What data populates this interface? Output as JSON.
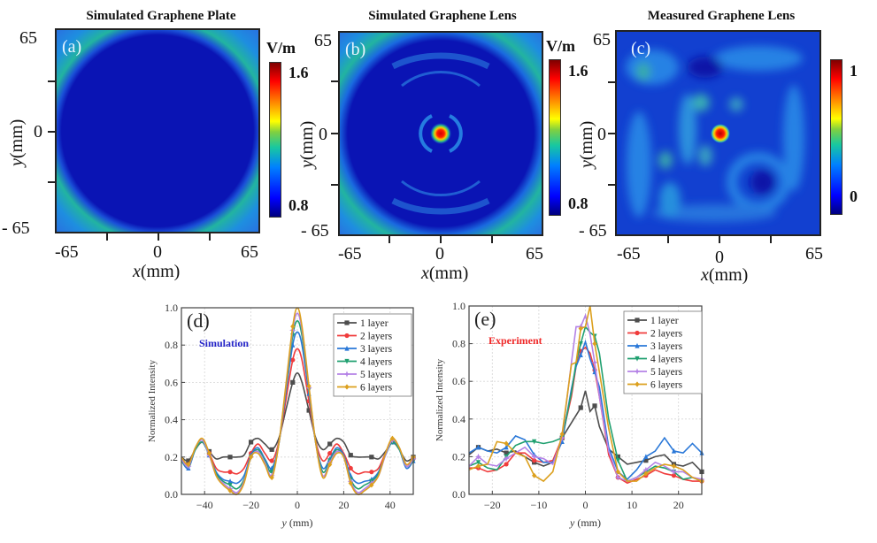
{
  "chart_data": [
    {
      "id": "a",
      "type": "heatmap",
      "title": "Simulated Graphene Plate",
      "title_color": "#c85fb4",
      "panel_label": "(a)",
      "xlabel_var": "x",
      "xlabel_unit": "(mm)",
      "ylabel_var": "y",
      "ylabel_unit": "(mm)",
      "x_ticks": [
        "-65",
        "0",
        "65"
      ],
      "y_ticks": [
        "65",
        "0",
        "- 65"
      ],
      "xlim": [
        -65,
        65
      ],
      "ylim": [
        -65,
        65
      ],
      "colorbar": {
        "unit": "V/m",
        "max_label": "1.6",
        "min_label": "0.8",
        "range": [
          0.8,
          1.6
        ]
      },
      "description": "Uniform low field (~0.8 V/m) with elevated ~1.1 V/m arcs at the four corners"
    },
    {
      "id": "b",
      "type": "heatmap",
      "title": "Simulated Graphene Lens",
      "title_color": "#f08a3c",
      "panel_label": "(b)",
      "xlabel_var": "x",
      "xlabel_unit": "(mm)",
      "ylabel_var": "y",
      "ylabel_unit": "(mm)",
      "x_ticks": [
        "-65",
        "0",
        "65"
      ],
      "y_ticks": [
        "65",
        "0",
        "- 65"
      ],
      "xlim": [
        -65,
        65
      ],
      "ylim": [
        -65,
        65
      ],
      "colorbar": {
        "unit": "V/m",
        "max_label": "1.6",
        "min_label": "0.8",
        "range": [
          0.8,
          1.6
        ]
      },
      "description": "Focal spot at center (~1.6 V/m) surrounded by faint concentric rings; corner arcs"
    },
    {
      "id": "c",
      "type": "heatmap",
      "title": "Measured Graphene Lens",
      "title_color": "#1a9a4a",
      "panel_label": "(c)",
      "xlabel_var": "x",
      "xlabel_unit": "(mm)",
      "ylabel_var": "y",
      "ylabel_unit": "(mm)",
      "x_ticks": [
        "-65",
        "0",
        "65"
      ],
      "y_ticks": [
        "65",
        "0",
        "- 65"
      ],
      "xlim": [
        -65,
        65
      ],
      "ylim": [
        -65,
        65
      ],
      "colorbar": {
        "unit": "",
        "max_label": "1",
        "min_label": "0",
        "range": [
          0,
          1
        ]
      },
      "description": "Measured normalized field; bright focal spot at center, speckled background"
    },
    {
      "id": "d",
      "type": "line",
      "panel_label": "(d)",
      "annotation": "Simulation",
      "annotation_color": "#2323c8",
      "xlabel_var": "y",
      "xlabel_unit": "(mm)",
      "ylabel": "Normalized Intensity",
      "xlim": [
        -50,
        50
      ],
      "ylim": [
        0,
        1
      ],
      "x_ticks": [
        -40,
        -20,
        0,
        20,
        40
      ],
      "x_tick_labels": [
        "−40",
        "−20",
        "0",
        "20",
        "40"
      ],
      "y_ticks": [
        0,
        0.2,
        0.4,
        0.6,
        0.8,
        1.0
      ],
      "y_tick_labels": [
        "0.0",
        "0.2",
        "0.4",
        "0.6",
        "0.8",
        "1.0"
      ],
      "grid": true,
      "legend": "top-right",
      "x": [
        -50,
        -47,
        -44,
        -41,
        -38,
        -35,
        -32,
        -29,
        -26,
        -23,
        -20,
        -17,
        -14,
        -11,
        -8,
        -5,
        -2,
        0,
        2,
        5,
        8,
        11,
        14,
        17,
        20,
        23,
        26,
        29,
        32,
        35,
        38,
        41,
        44,
        47,
        50
      ],
      "series": [
        {
          "name": "1 layer",
          "color": "#4d4d4d",
          "marker": "square",
          "values": [
            0.2,
            0.18,
            0.24,
            0.28,
            0.23,
            0.19,
            0.2,
            0.2,
            0.2,
            0.21,
            0.28,
            0.3,
            0.27,
            0.24,
            0.3,
            0.45,
            0.6,
            0.65,
            0.6,
            0.45,
            0.3,
            0.24,
            0.27,
            0.3,
            0.28,
            0.21,
            0.2,
            0.2,
            0.2,
            0.19,
            0.23,
            0.28,
            0.24,
            0.18,
            0.2
          ]
        },
        {
          "name": "2 layers",
          "color": "#f03c3c",
          "marker": "circle",
          "values": [
            0.19,
            0.16,
            0.24,
            0.28,
            0.22,
            0.14,
            0.12,
            0.12,
            0.11,
            0.14,
            0.22,
            0.27,
            0.22,
            0.18,
            0.28,
            0.5,
            0.72,
            0.78,
            0.72,
            0.5,
            0.28,
            0.18,
            0.22,
            0.27,
            0.22,
            0.14,
            0.11,
            0.12,
            0.12,
            0.14,
            0.22,
            0.28,
            0.24,
            0.16,
            0.19
          ]
        },
        {
          "name": "3 layers",
          "color": "#2a78d8",
          "marker": "triangle-up",
          "values": [
            0.18,
            0.14,
            0.24,
            0.28,
            0.21,
            0.12,
            0.08,
            0.07,
            0.06,
            0.1,
            0.21,
            0.25,
            0.19,
            0.14,
            0.27,
            0.54,
            0.8,
            0.87,
            0.8,
            0.54,
            0.27,
            0.14,
            0.19,
            0.25,
            0.21,
            0.1,
            0.06,
            0.07,
            0.08,
            0.12,
            0.21,
            0.28,
            0.24,
            0.14,
            0.18
          ]
        },
        {
          "name": "4 layers",
          "color": "#20a070",
          "marker": "triangle-down",
          "values": [
            0.18,
            0.15,
            0.24,
            0.28,
            0.21,
            0.11,
            0.07,
            0.05,
            0.03,
            0.08,
            0.2,
            0.24,
            0.18,
            0.12,
            0.27,
            0.56,
            0.85,
            0.93,
            0.85,
            0.56,
            0.27,
            0.12,
            0.18,
            0.24,
            0.2,
            0.08,
            0.03,
            0.05,
            0.07,
            0.11,
            0.21,
            0.28,
            0.24,
            0.15,
            0.18
          ]
        },
        {
          "name": "5 layers",
          "color": "#b482e6",
          "marker": "star",
          "values": [
            0.19,
            0.15,
            0.25,
            0.29,
            0.21,
            0.1,
            0.06,
            0.03,
            0.01,
            0.07,
            0.2,
            0.23,
            0.17,
            0.1,
            0.27,
            0.57,
            0.88,
            0.97,
            0.88,
            0.57,
            0.27,
            0.1,
            0.17,
            0.23,
            0.2,
            0.07,
            0.01,
            0.03,
            0.06,
            0.1,
            0.21,
            0.29,
            0.25,
            0.15,
            0.19
          ]
        },
        {
          "name": "6 layers",
          "color": "#dca01e",
          "marker": "diamond",
          "values": [
            0.2,
            0.16,
            0.25,
            0.3,
            0.22,
            0.1,
            0.05,
            0.02,
            0.0,
            0.06,
            0.2,
            0.22,
            0.16,
            0.09,
            0.27,
            0.58,
            0.9,
            1.0,
            0.9,
            0.58,
            0.27,
            0.09,
            0.16,
            0.22,
            0.2,
            0.06,
            0.0,
            0.02,
            0.05,
            0.1,
            0.22,
            0.3,
            0.25,
            0.16,
            0.2
          ]
        }
      ]
    },
    {
      "id": "e",
      "type": "line",
      "panel_label": "(e)",
      "annotation": "Experiment",
      "annotation_color": "#f02828",
      "xlabel_var": "y",
      "xlabel_unit": "(mm)",
      "ylabel": "Normalized Intensity",
      "xlim": [
        -25,
        25
      ],
      "ylim": [
        0,
        1
      ],
      "x_ticks": [
        -20,
        -10,
        0,
        10,
        20
      ],
      "x_tick_labels": [
        "−20",
        "−10",
        "0",
        "10",
        "20"
      ],
      "y_ticks": [
        0,
        0.2,
        0.4,
        0.6,
        0.8,
        1.0
      ],
      "y_tick_labels": [
        "0.0",
        "0.2",
        "0.4",
        "0.6",
        "0.8",
        "1.0"
      ],
      "grid": true,
      "legend": "top-right",
      "x": [
        -25,
        -23,
        -21,
        -19,
        -17,
        -15,
        -13,
        -11,
        -9,
        -7,
        -5,
        -3,
        -2,
        -1,
        0,
        1,
        2,
        3,
        5,
        7,
        9,
        11,
        13,
        15,
        17,
        19,
        21,
        23,
        25
      ],
      "series": [
        {
          "name": "1 layer",
          "color": "#4d4d4d",
          "marker": "square",
          "values": [
            0.21,
            0.25,
            0.23,
            0.24,
            0.22,
            0.23,
            0.2,
            0.17,
            0.15,
            0.17,
            0.3,
            0.38,
            0.42,
            0.46,
            0.55,
            0.44,
            0.47,
            0.36,
            0.24,
            0.2,
            0.16,
            0.17,
            0.18,
            0.2,
            0.21,
            0.16,
            0.15,
            0.17,
            0.12
          ]
        },
        {
          "name": "2 layers",
          "color": "#f03c3c",
          "marker": "circle",
          "values": [
            0.14,
            0.14,
            0.12,
            0.13,
            0.16,
            0.22,
            0.22,
            0.18,
            0.17,
            0.18,
            0.3,
            0.52,
            0.68,
            0.76,
            0.78,
            0.75,
            0.66,
            0.52,
            0.21,
            0.09,
            0.06,
            0.08,
            0.1,
            0.13,
            0.11,
            0.1,
            0.08,
            0.07,
            0.07
          ]
        },
        {
          "name": "3 layers",
          "color": "#2a78d8",
          "marker": "triangle-up",
          "values": [
            0.22,
            0.25,
            0.23,
            0.22,
            0.25,
            0.31,
            0.29,
            0.21,
            0.17,
            0.17,
            0.28,
            0.56,
            0.68,
            0.74,
            0.81,
            0.72,
            0.65,
            0.57,
            0.25,
            0.12,
            0.08,
            0.13,
            0.2,
            0.23,
            0.3,
            0.23,
            0.22,
            0.27,
            0.22
          ]
        },
        {
          "name": "4 layers",
          "color": "#20a070",
          "marker": "triangle-down",
          "values": [
            0.15,
            0.17,
            0.14,
            0.13,
            0.2,
            0.26,
            0.28,
            0.28,
            0.27,
            0.28,
            0.3,
            0.54,
            0.7,
            0.8,
            0.89,
            0.86,
            0.84,
            0.75,
            0.4,
            0.18,
            0.07,
            0.09,
            0.12,
            0.15,
            0.14,
            0.12,
            0.08,
            0.09,
            0.07
          ]
        },
        {
          "name": "5 layers",
          "color": "#b482e6",
          "marker": "star",
          "values": [
            0.15,
            0.2,
            0.16,
            0.15,
            0.19,
            0.22,
            0.25,
            0.2,
            0.19,
            0.16,
            0.3,
            0.7,
            0.89,
            0.89,
            0.95,
            0.85,
            0.7,
            0.52,
            0.23,
            0.09,
            0.07,
            0.09,
            0.13,
            0.17,
            0.15,
            0.12,
            0.12,
            0.09,
            0.08
          ]
        },
        {
          "name": "6 layers",
          "color": "#dca01e",
          "marker": "diamond",
          "values": [
            0.13,
            0.15,
            0.16,
            0.28,
            0.27,
            0.22,
            0.2,
            0.1,
            0.07,
            0.12,
            0.32,
            0.69,
            0.7,
            0.88,
            0.89,
            1.0,
            0.8,
            0.65,
            0.35,
            0.12,
            0.07,
            0.07,
            0.11,
            0.14,
            0.16,
            0.15,
            0.13,
            0.09,
            0.07
          ]
        }
      ]
    }
  ]
}
